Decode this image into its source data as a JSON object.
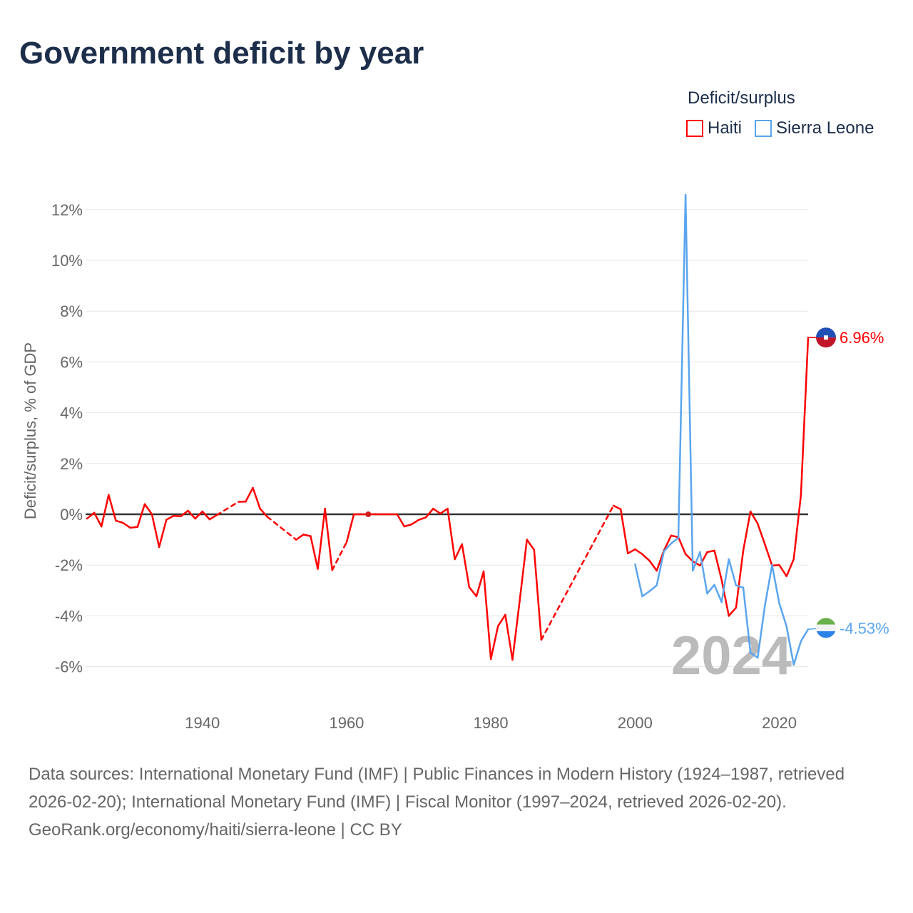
{
  "title": "Government deficit by year",
  "legend": {
    "title": "Deficit/surplus",
    "items": [
      {
        "name": "Haiti",
        "color": "#ff0000"
      },
      {
        "name": "Sierra Leone",
        "color": "#5aa5ee"
      }
    ]
  },
  "chart_data": {
    "type": "line",
    "title": "Government deficit by year",
    "xlabel": "",
    "ylabel": "Deficit/surplus, % of GDP",
    "xlim": [
      1924,
      2024
    ],
    "ylim": [
      -7,
      13
    ],
    "x_ticks": [
      1940,
      1960,
      1980,
      2000,
      2020
    ],
    "y_ticks": [
      -6,
      -4,
      -2,
      0,
      2,
      4,
      6,
      8,
      10,
      12
    ],
    "y_tick_labels": [
      "-6%",
      "-4%",
      "-2%",
      "0%",
      "2%",
      "4%",
      "6%",
      "8%",
      "10%",
      "12%"
    ],
    "watermark_year": "2024",
    "series": [
      {
        "name": "Haiti",
        "color": "#ff0000",
        "end_label": "6.96%",
        "x": [
          1924,
          1925,
          1926,
          1927,
          1928,
          1929,
          1930,
          1931,
          1932,
          1933,
          1934,
          1935,
          1936,
          1937,
          1938,
          1939,
          1940,
          1941,
          1942,
          1945,
          1946,
          1947,
          1948,
          1949,
          1953,
          1954,
          1955,
          1956,
          1957,
          1958,
          1960,
          1961,
          1962,
          1963,
          1964,
          1965,
          1966,
          1967,
          1968,
          1969,
          1970,
          1971,
          1972,
          1973,
          1974,
          1975,
          1976,
          1977,
          1978,
          1979,
          1980,
          1981,
          1982,
          1983,
          1984,
          1985,
          1986,
          1987,
          1997,
          1998,
          1999,
          2000,
          2001,
          2002,
          2003,
          2004,
          2005,
          2006,
          2007,
          2008,
          2009,
          2010,
          2011,
          2012,
          2013,
          2014,
          2015,
          2016,
          2017,
          2018,
          2019,
          2020,
          2021,
          2022,
          2023,
          2024
        ],
        "y": [
          -0.17,
          0.06,
          -0.48,
          0.76,
          -0.25,
          -0.34,
          -0.53,
          -0.5,
          0.4,
          0,
          -1.29,
          -0.22,
          -0.06,
          -0.08,
          0.14,
          -0.17,
          0.11,
          -0.2,
          -0.03,
          0.49,
          0.5,
          1.04,
          0.22,
          -0.1,
          -1.0,
          -0.8,
          -0.86,
          -2.15,
          0.22,
          -2.2,
          -1.1,
          0,
          0,
          0,
          0,
          0,
          0,
          0,
          -0.48,
          -0.4,
          -0.22,
          -0.12,
          0.22,
          0.03,
          0.22,
          -1.77,
          -1.18,
          -2.87,
          -3.23,
          -2.25,
          -5.7,
          -4.4,
          -3.96,
          -5.73,
          -3.4,
          -1.0,
          -1.4,
          -4.94,
          0.34,
          0.2,
          -1.54,
          -1.38,
          -1.57,
          -1.83,
          -2.22,
          -1.43,
          -0.84,
          -0.9,
          -1.57,
          -1.85,
          -2.02,
          -1.49,
          -1.43,
          -2.58,
          -4.0,
          -3.68,
          -1.43,
          0.11,
          -0.37,
          -1.18,
          -2.02,
          -2.0,
          -2.44,
          -1.77,
          0.76,
          6.96
        ]
      },
      {
        "name": "Sierra Leone",
        "color": "#5aa5ee",
        "end_label": "-4.53%",
        "x": [
          2000,
          2001,
          2002,
          2003,
          2004,
          2005,
          2006,
          2007,
          2008,
          2009,
          2010,
          2011,
          2012,
          2013,
          2014,
          2015,
          2016,
          2017,
          2018,
          2019,
          2020,
          2021,
          2022,
          2023,
          2024
        ],
        "y": [
          -1.97,
          -3.23,
          -3.03,
          -2.8,
          -1.46,
          -1.15,
          -0.93,
          12.58,
          -2.22,
          -1.49,
          -3.12,
          -2.78,
          -3.46,
          -1.77,
          -2.8,
          -2.89,
          -5.45,
          -5.65,
          -3.6,
          -2.0,
          -3.51,
          -4.41,
          -5.93,
          -5.0,
          -4.53
        ]
      }
    ]
  },
  "footer": {
    "sources": "Data sources: International Monetary Fund (IMF) | Public Finances in Modern History (1924–1987, retrieved 2026-02-20); International Monetary Fund (IMF) | Fiscal Monitor (1997–2024, retrieved 2026-02-20).",
    "credit": "GeoRank.org/economy/haiti/sierra-leone | CC BY"
  }
}
